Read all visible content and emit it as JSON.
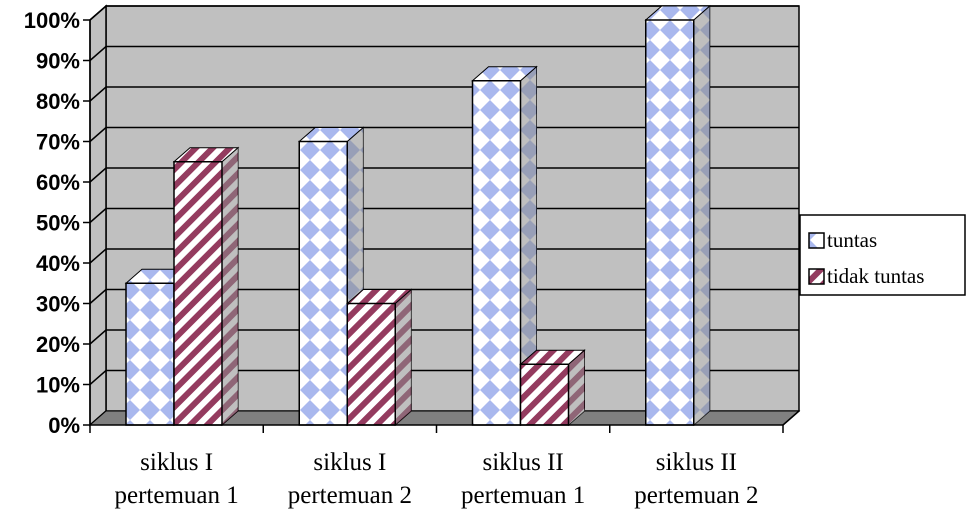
{
  "chart_data": {
    "type": "bar",
    "style": "3d-clustered-column",
    "categories": [
      [
        "siklus I",
        "pertemuan 1"
      ],
      [
        "siklus I",
        "pertemuan 2"
      ],
      [
        "siklus II",
        "pertemuan 1"
      ],
      [
        "siklus II",
        "pertemuan 2"
      ]
    ],
    "series": [
      {
        "name": "tuntas",
        "values": [
          35,
          70,
          85,
          100
        ],
        "pattern": "diamond-check",
        "colors": [
          "#ffffff",
          "#a9b8ee"
        ]
      },
      {
        "name": "tidak tuntas",
        "values": [
          65,
          30,
          15,
          0
        ],
        "pattern": "diagonal-stripe",
        "colors": [
          "#ffffff",
          "#943b5f"
        ]
      }
    ],
    "ylim": [
      0,
      100
    ],
    "y_ticks": [
      "0%",
      "10%",
      "20%",
      "30%",
      "40%",
      "50%",
      "60%",
      "70%",
      "80%",
      "90%",
      "100%"
    ],
    "y_unit": "%",
    "title": "",
    "xlabel": "",
    "ylabel": "",
    "grid": true,
    "legend": "right",
    "colors": {
      "wall": "#c0c0c0",
      "floor": "#808080",
      "side": "#8a8a8a"
    }
  }
}
